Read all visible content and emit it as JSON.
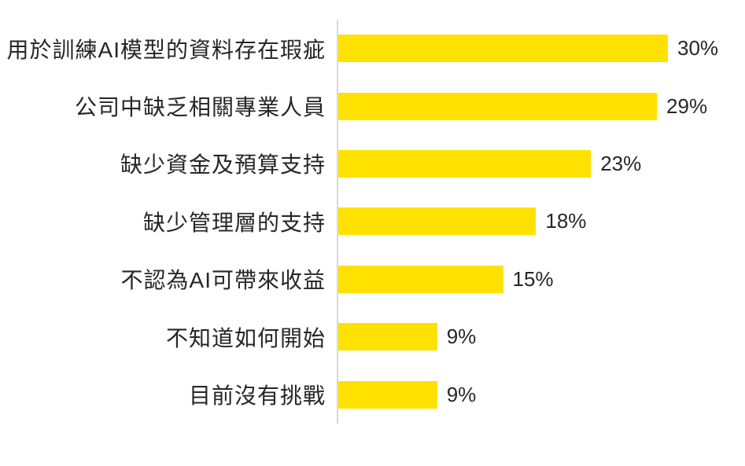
{
  "chart_data": {
    "type": "bar",
    "orientation": "horizontal",
    "title": "",
    "categories": [
      "用於訓練AI模型的資料存在瑕疵",
      "公司中缺乏相關專業人員",
      "缺少資金及預算支持",
      "缺少管理層的支持",
      "不認為AI可帶來收益",
      "不知道如何開始",
      "目前沒有挑戰"
    ],
    "values": [
      30,
      29,
      23,
      18,
      15,
      9,
      9
    ],
    "value_labels": [
      "30%",
      "29%",
      "23%",
      "18%",
      "15%",
      "9%",
      "9%"
    ],
    "xlim": [
      0,
      30
    ],
    "xlabel": "",
    "ylabel": "",
    "grid": false,
    "legend": false,
    "data_labels_position": "outside-end",
    "bar_color": "#FFE100",
    "axis_line_color": "#D9D9D9",
    "text_color": "#262626",
    "background_color": "#FFFFFF"
  }
}
